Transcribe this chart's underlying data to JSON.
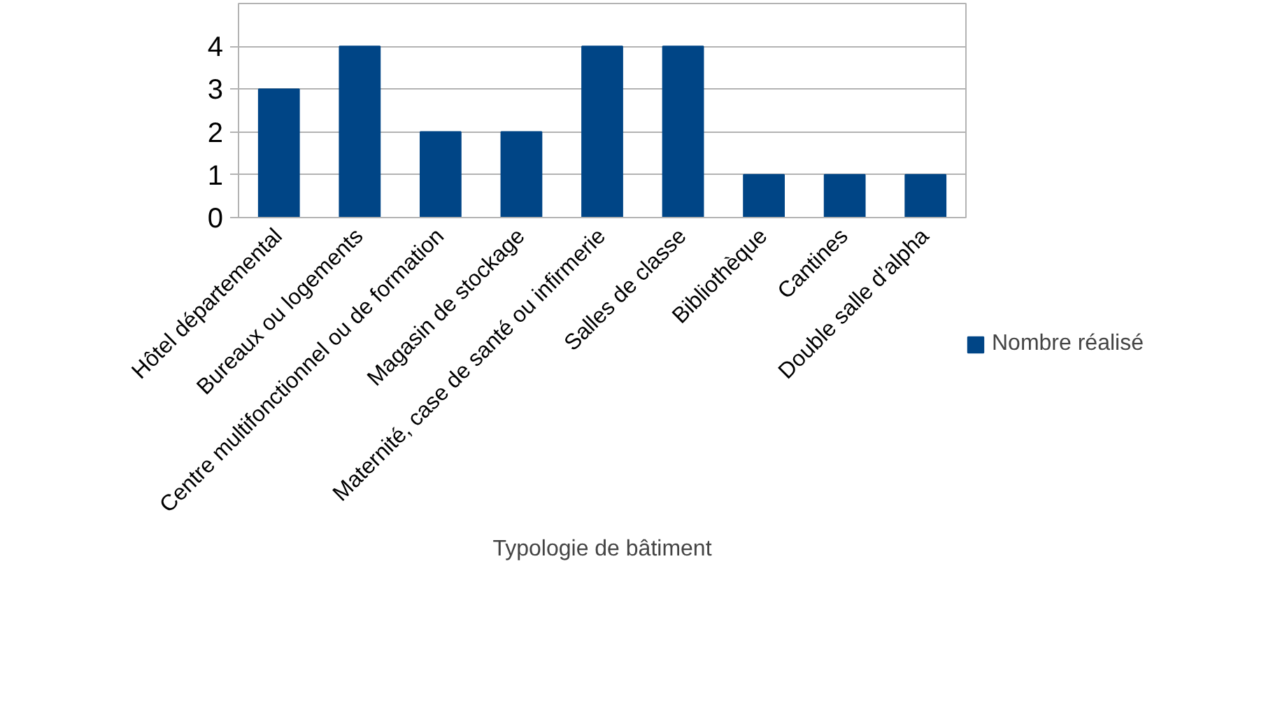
{
  "chart_data": {
    "type": "bar",
    "xlabel": "Typologie de bâtiment",
    "categories": [
      "Hôtel départemental",
      "Bureaux ou logements",
      "Centre multifonctionnel ou de formation",
      "Magasin de stockage",
      "Maternité, case de santé ou infirmerie",
      "Salles de classe",
      "Bibliothèque",
      "Cantines",
      "Double salle d’alpha"
    ],
    "series": [
      {
        "name": "Nombre réalisé",
        "color": "#004586",
        "values": [
          3,
          4,
          2,
          2,
          4,
          4,
          1,
          1,
          1
        ]
      }
    ],
    "ylim": [
      0,
      5
    ],
    "yticks": [
      0,
      1,
      2,
      3,
      4
    ],
    "grid": "y",
    "legend": "right"
  }
}
